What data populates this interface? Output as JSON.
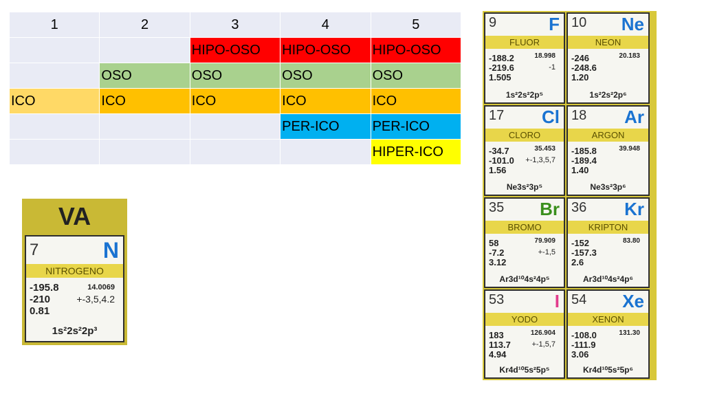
{
  "table": {
    "headers": [
      "1",
      "2",
      "3",
      "4",
      "5"
    ],
    "rows": [
      [
        "",
        "",
        "HIPO-OSO",
        "HIPO-OSO",
        "HIPO-OSO"
      ],
      [
        "",
        "OSO",
        "OSO",
        "OSO",
        "OSO"
      ],
      [
        "ICO",
        "ICO",
        "ICO",
        "ICO",
        "ICO"
      ],
      [
        "",
        "",
        "",
        "PER-ICO",
        "PER-ICO"
      ],
      [
        "",
        "",
        "",
        "",
        "HIPER-ICO"
      ]
    ],
    "colors": {
      "hipo_oso": "#ff0000",
      "oso": "#a9d18e",
      "ico_first": "#ffd966",
      "ico": "#ffc000",
      "per_ico": "#00b0f0",
      "hiper_ico": "#ffff00",
      "empty": "#e9ebf5"
    }
  },
  "va_card": {
    "group_label": "VA",
    "number": "7",
    "symbol": "N",
    "name": "NITROGENO",
    "v1": "-195.8",
    "mass": "14.0069",
    "v2": "-210",
    "oxidation": "+-3,5,4.2",
    "v3": "0.81",
    "config": "1s²2s²2p³"
  },
  "halogens": [
    {
      "number": "9",
      "symbol": "F",
      "name": "FLUOR",
      "v1": "-188.2",
      "mass": "18.998",
      "v2": "-219.6",
      "oxidation": "-1",
      "v3": "1.505",
      "config": "1s²2s²2p⁵",
      "symbol_color": "blue"
    },
    {
      "number": "17",
      "symbol": "Cl",
      "name": "CLORO",
      "v1": "-34.7",
      "mass": "35.453",
      "v2": "-101.0",
      "oxidation": "+-1,3,5,7",
      "v3": "1.56",
      "config": "Ne3s²3p⁵",
      "symbol_color": "blue"
    },
    {
      "number": "35",
      "symbol": "Br",
      "name": "BROMO",
      "v1": "58",
      "mass": "79.909",
      "v2": "-7.2",
      "oxidation": "+-1,5",
      "v3": "3.12",
      "config": "Ar3d¹⁰4s²4p⁵",
      "symbol_color": "green"
    },
    {
      "number": "53",
      "symbol": "I",
      "name": "YODO",
      "v1": "183",
      "mass": "126.904",
      "v2": "113.7",
      "oxidation": "+-1,5,7",
      "v3": "4.94",
      "config": "Kr4d¹⁰5s²5p⁵",
      "symbol_color": "pink"
    }
  ],
  "noble_gases": [
    {
      "number": "10",
      "symbol": "Ne",
      "name": "NEON",
      "v1": "-246",
      "mass": "20.183",
      "v2": "-248.6",
      "oxidation": "",
      "v3": "1.20",
      "config": "1s²2s²2p⁶",
      "symbol_color": "blue"
    },
    {
      "number": "18",
      "symbol": "Ar",
      "name": "ARGON",
      "v1": "-185.8",
      "mass": "39.948",
      "v2": "-189.4",
      "oxidation": "",
      "v3": "1.40",
      "config": "Ne3s²3p⁶",
      "symbol_color": "blue"
    },
    {
      "number": "36",
      "symbol": "Kr",
      "name": "KRIPTON",
      "v1": "-152",
      "mass": "83.80",
      "v2": "-157.3",
      "oxidation": "",
      "v3": "2.6",
      "config": "Ar3d¹⁰4s²4p⁶",
      "symbol_color": "blue"
    },
    {
      "number": "54",
      "symbol": "Xe",
      "name": "XENON",
      "v1": "-108.0",
      "mass": "131.30",
      "v2": "-111.9",
      "oxidation": "",
      "v3": "3.06",
      "config": "Kr4d¹⁰5s²5p⁶",
      "symbol_color": "blue"
    }
  ]
}
